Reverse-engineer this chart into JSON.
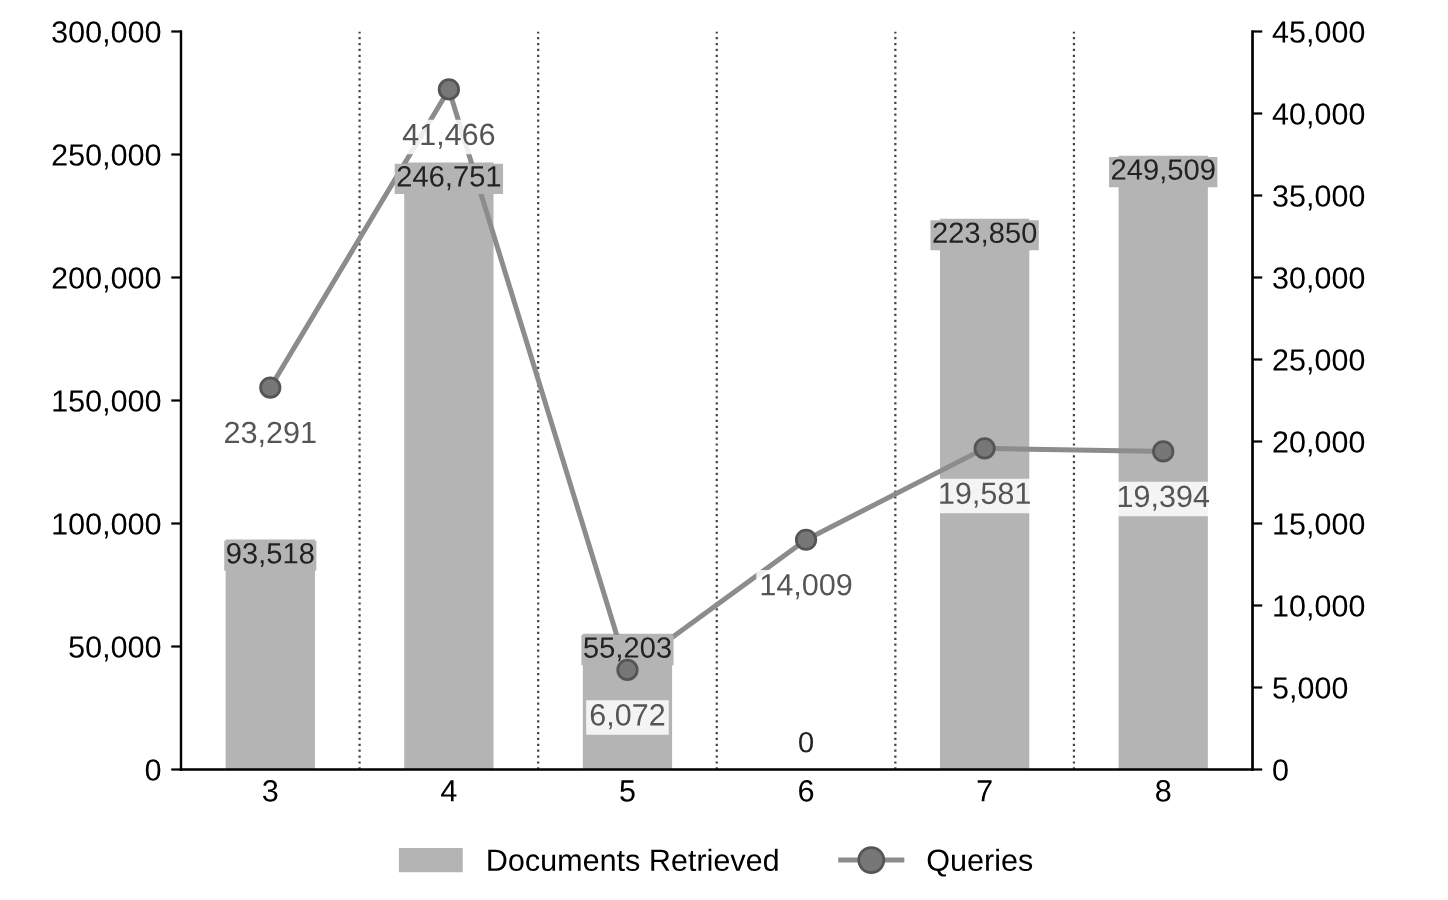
{
  "chart_data": {
    "type": "bar",
    "categories": [
      "3",
      "4",
      "5",
      "6",
      "7",
      "8"
    ],
    "series": [
      {
        "name": "Documents Retrieved",
        "color": "#b4b4b4",
        "values": [
          93518,
          246751,
          55203,
          0,
          223850,
          249509
        ],
        "value_labels": [
          "93,518",
          "246,751",
          "55,203",
          "0",
          "223,850",
          "249,509"
        ]
      },
      {
        "name": "Queries",
        "type": "line",
        "axis": "y2",
        "color": "#8c8c8c",
        "values": [
          23291,
          41466,
          6072,
          14009,
          19581,
          19394
        ],
        "value_labels": [
          "23,291",
          "41,466",
          "6,072",
          "14,009",
          "19,581",
          "19,394"
        ]
      }
    ],
    "ylim": [
      0,
      300000
    ],
    "yticks": [
      {
        "value": 0,
        "label": "0"
      },
      {
        "value": 50000,
        "label": "50,000"
      },
      {
        "value": 100000,
        "label": "100,000"
      },
      {
        "value": 150000,
        "label": "150,000"
      },
      {
        "value": 200000,
        "label": "200,000"
      },
      {
        "value": 250000,
        "label": "250,000"
      },
      {
        "value": 300000,
        "label": "300,000"
      }
    ],
    "y2lim": [
      0,
      45000
    ],
    "y2ticks": [
      {
        "value": 0,
        "label": "0"
      },
      {
        "value": 5000,
        "label": "5,000"
      },
      {
        "value": 10000,
        "label": "10,000"
      },
      {
        "value": 15000,
        "label": "15,000"
      },
      {
        "value": 20000,
        "label": "20,000"
      },
      {
        "value": 25000,
        "label": "25,000"
      },
      {
        "value": 30000,
        "label": "30,000"
      },
      {
        "value": 35000,
        "label": "35,000"
      },
      {
        "value": 40000,
        "label": "40,000"
      },
      {
        "value": 45000,
        "label": "45,000"
      }
    ],
    "grid": "x",
    "legend": "bottom",
    "marker": "circle",
    "line_style": "solid"
  }
}
